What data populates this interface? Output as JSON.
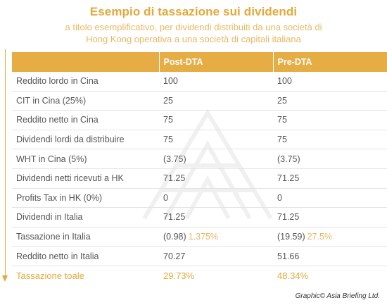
{
  "header": {
    "title": "Esempio di tassazione sui dividendi",
    "subtitle_line1": "a titolo esemplificativo, per dividendi distribuiti da una società di",
    "subtitle_line2": "Hong Kong operativa a una società di capitali italiana"
  },
  "table": {
    "columns": [
      "",
      "Post-DTA",
      "Pre-DTA"
    ],
    "rows": [
      {
        "label": "Reddito lordo in Cina",
        "post": "100",
        "pre": "100"
      },
      {
        "label": "CIT in Cina (25%)",
        "post": "25",
        "pre": "25"
      },
      {
        "label": "Reddito netto in Cina",
        "post": "75",
        "pre": "75"
      },
      {
        "label": "Dividendi lordi da distribuire",
        "post": "75",
        "pre": "75"
      },
      {
        "label": "WHT in Cina (5%)",
        "post": "(3.75)",
        "pre": "(3.75)"
      },
      {
        "label": "Dividendi netti ricevuti a HK",
        "post": "71.25",
        "pre": "71.25"
      },
      {
        "label": "Profits Tax in HK (0%)",
        "post": "0",
        "pre": "0"
      },
      {
        "label": "Dividendi in Italia",
        "post": "71.25",
        "pre": "71.25"
      },
      {
        "label": "Tassazione in Italia",
        "post": "(0.98)",
        "post_pct": "1.375%",
        "pre": "(19.59)",
        "pre_pct": "27.5%"
      },
      {
        "label": "Reddito netto in Italia",
        "post": "70.27",
        "pre": "51.66"
      }
    ],
    "total": {
      "label": "Tassazione toale",
      "post": "29.73%",
      "pre": "48.34%"
    }
  },
  "credit": "Graphic© Asia Briefing Ltd.",
  "colors": {
    "accent": "#e3a83a",
    "header_bg": "#e6ad45",
    "text": "#555555",
    "row_divider": "#e4e4e4"
  },
  "icons": [
    "flow-arrow-icon",
    "watermark-logo-icon"
  ]
}
